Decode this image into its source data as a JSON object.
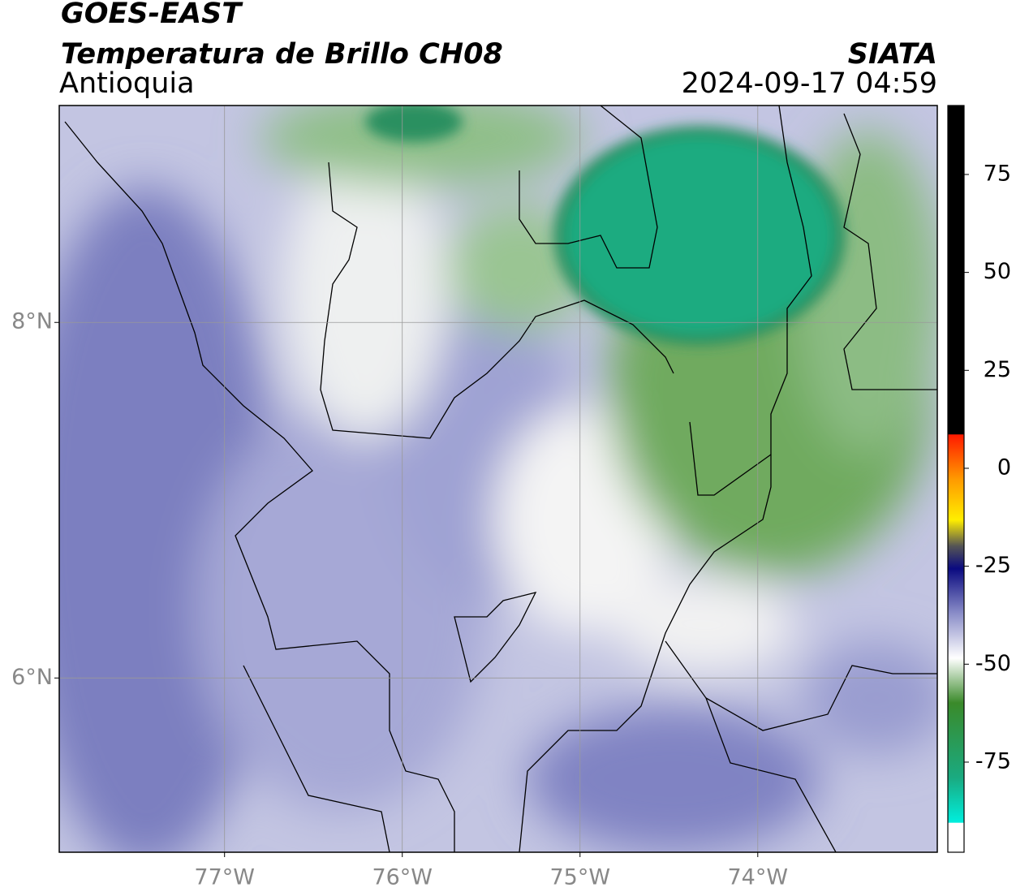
{
  "header": {
    "title": "GOES-EAST",
    "subtitle": "Temperatura de Brillo CH08",
    "region": "Antioquia",
    "source": "SIATA",
    "datetime": "2024-09-17 04:59"
  },
  "map": {
    "lonlim": [
      -77.93,
      -72.99
    ],
    "latlim": [
      5.02,
      9.22
    ],
    "lonticks": [
      {
        "value": -77,
        "label": "77°W"
      },
      {
        "value": -76,
        "label": "76°W"
      },
      {
        "value": -75,
        "label": "75°W"
      },
      {
        "value": -74,
        "label": "74°W"
      }
    ],
    "latticks": [
      {
        "value": 8,
        "label": "8°N"
      },
      {
        "value": 6,
        "label": "6°N"
      }
    ],
    "grid": true
  },
  "colorbar": {
    "lim": [
      -98,
      92.6
    ],
    "ticks": [
      75,
      50,
      25,
      0,
      -25,
      -50,
      -75
    ]
  }
}
